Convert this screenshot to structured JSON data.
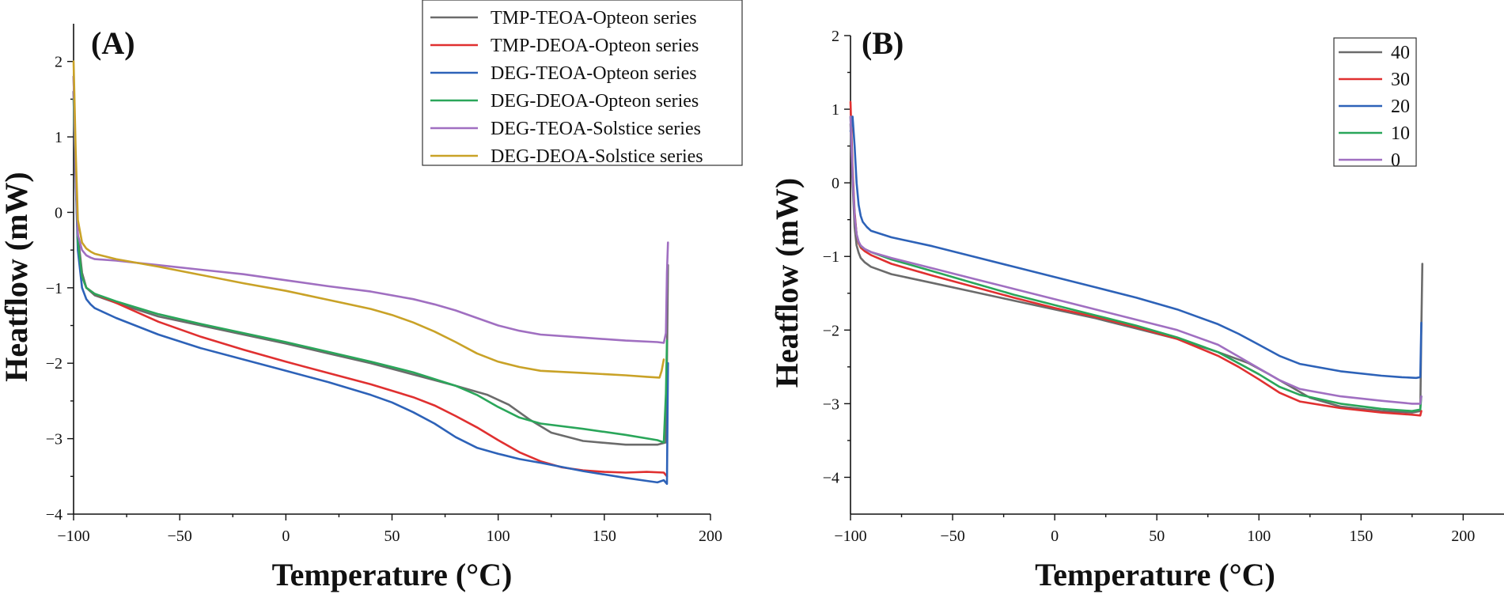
{
  "chart_data": [
    {
      "type": "line",
      "panel_label": "(A)",
      "xlabel": "Temperature (°C)",
      "ylabel": "Heatflow (mW)",
      "xlim": [
        -100,
        200
      ],
      "ylim": [
        -4,
        2.5
      ],
      "xticks": [
        -100,
        -50,
        0,
        50,
        100,
        150,
        200
      ],
      "xtick_labels": [
        "−100",
        "−50",
        "0",
        "50",
        "100",
        "150",
        "200"
      ],
      "yticks": [
        -4,
        -3,
        -2,
        -1,
        0,
        1,
        2
      ],
      "ytick_labels": [
        "−4",
        "−3",
        "−2",
        "−1",
        "0",
        "1",
        "2"
      ],
      "legend_position": "top-center",
      "series": [
        {
          "name": "TMP-TEOA-Opteon series",
          "color": "#6b6b6b",
          "x": [
            -100,
            -99,
            -98,
            -96,
            -94,
            -90,
            -80,
            -60,
            -40,
            -20,
            0,
            20,
            40,
            60,
            80,
            95,
            105,
            115,
            125,
            140,
            160,
            175,
            179,
            179.5,
            180
          ],
          "y": [
            1.8,
            0.6,
            -0.3,
            -0.8,
            -1.0,
            -1.1,
            -1.2,
            -1.38,
            -1.5,
            -1.62,
            -1.74,
            -1.87,
            -2.0,
            -2.15,
            -2.3,
            -2.42,
            -2.55,
            -2.75,
            -2.92,
            -3.03,
            -3.08,
            -3.08,
            -3.05,
            -2.0,
            -0.7
          ]
        },
        {
          "name": "TMP-DEOA-Opteon series",
          "color": "#e03030",
          "x": [
            -100,
            -99,
            -98,
            -96,
            -94,
            -90,
            -80,
            -60,
            -40,
            -20,
            0,
            20,
            40,
            60,
            70,
            80,
            90,
            100,
            110,
            120,
            130,
            140,
            150,
            160,
            170,
            178,
            179.5
          ],
          "y": [
            1.6,
            0.5,
            -0.4,
            -0.85,
            -1.0,
            -1.08,
            -1.2,
            -1.45,
            -1.65,
            -1.82,
            -1.98,
            -2.13,
            -2.28,
            -2.45,
            -2.56,
            -2.7,
            -2.85,
            -3.02,
            -3.18,
            -3.3,
            -3.38,
            -3.42,
            -3.44,
            -3.45,
            -3.44,
            -3.45,
            -3.5
          ]
        },
        {
          "name": "DEG-TEOA-Opteon series",
          "color": "#2d62b8",
          "x": [
            -100,
            -99,
            -98,
            -96,
            -94,
            -92,
            -90,
            -80,
            -60,
            -40,
            -20,
            0,
            20,
            40,
            50,
            60,
            70,
            80,
            90,
            100,
            110,
            120,
            140,
            160,
            170,
            175,
            178,
            179.5,
            180
          ],
          "y": [
            1.6,
            0.4,
            -0.5,
            -1.0,
            -1.15,
            -1.22,
            -1.27,
            -1.4,
            -1.62,
            -1.8,
            -1.95,
            -2.1,
            -2.25,
            -2.42,
            -2.52,
            -2.65,
            -2.8,
            -2.98,
            -3.12,
            -3.2,
            -3.27,
            -3.32,
            -3.43,
            -3.52,
            -3.56,
            -3.58,
            -3.55,
            -3.6,
            -2.0
          ]
        },
        {
          "name": "DEG-DEOA-Opteon series",
          "color": "#2aa65a",
          "x": [
            -100,
            -99,
            -98,
            -96,
            -94,
            -90,
            -80,
            -60,
            -40,
            -20,
            0,
            20,
            40,
            60,
            80,
            90,
            100,
            110,
            120,
            140,
            160,
            175,
            178,
            179,
            179.5
          ],
          "y": [
            1.5,
            0.5,
            -0.4,
            -0.85,
            -1.0,
            -1.08,
            -1.18,
            -1.35,
            -1.48,
            -1.6,
            -1.72,
            -1.85,
            -1.98,
            -2.12,
            -2.3,
            -2.42,
            -2.58,
            -2.72,
            -2.8,
            -2.87,
            -2.95,
            -3.02,
            -3.05,
            -2.4,
            -1.7
          ]
        },
        {
          "name": "DEG-TEOA-Solstice series",
          "color": "#a06fc1",
          "x": [
            -100,
            -99,
            -98,
            -96,
            -94,
            -92,
            -90,
            -80,
            -60,
            -40,
            -20,
            0,
            20,
            40,
            60,
            70,
            80,
            90,
            100,
            110,
            120,
            140,
            160,
            175,
            178,
            179,
            179.5,
            180
          ],
          "y": [
            1.8,
            0.5,
            -0.3,
            -0.5,
            -0.57,
            -0.6,
            -0.62,
            -0.64,
            -0.7,
            -0.76,
            -0.82,
            -0.9,
            -0.98,
            -1.05,
            -1.15,
            -1.22,
            -1.3,
            -1.4,
            -1.5,
            -1.57,
            -1.62,
            -1.66,
            -1.7,
            -1.72,
            -1.73,
            -1.6,
            -0.8,
            -0.4
          ]
        },
        {
          "name": "DEG-DEOA-Solstice series",
          "color": "#c9a227",
          "x": [
            -100,
            -99,
            -98,
            -96,
            -94,
            -92,
            -90,
            -80,
            -60,
            -40,
            -20,
            0,
            20,
            40,
            50,
            60,
            70,
            80,
            90,
            100,
            110,
            120,
            140,
            160,
            170,
            176,
            177,
            178
          ],
          "y": [
            2.0,
            0.8,
            -0.1,
            -0.4,
            -0.48,
            -0.52,
            -0.55,
            -0.62,
            -0.72,
            -0.83,
            -0.94,
            -1.04,
            -1.16,
            -1.28,
            -1.36,
            -1.46,
            -1.58,
            -1.72,
            -1.87,
            -1.98,
            -2.05,
            -2.1,
            -2.13,
            -2.16,
            -2.18,
            -2.19,
            -2.1,
            -1.95
          ]
        }
      ]
    },
    {
      "type": "line",
      "panel_label": "(B)",
      "xlabel": "Temperature (°C)",
      "ylabel": "Heatflow (mW)",
      "xlim": [
        -100,
        220
      ],
      "ylim": [
        -4.5,
        2
      ],
      "xticks": [
        -100,
        -50,
        0,
        50,
        100,
        150,
        200
      ],
      "xtick_labels": [
        "−100",
        "−50",
        "0",
        "50",
        "100",
        "150",
        "200"
      ],
      "yticks": [
        -4,
        -3,
        -2,
        -1,
        0,
        1,
        2
      ],
      "ytick_labels": [
        "−4",
        "−3",
        "−2",
        "−1",
        "0",
        "1",
        "2"
      ],
      "legend_position": "top-right",
      "series": [
        {
          "name": "40",
          "color": "#6b6b6b",
          "x": [
            -100,
            -99,
            -98,
            -97,
            -96,
            -95,
            -93,
            -90,
            -80,
            -60,
            -40,
            -20,
            0,
            20,
            40,
            60,
            80,
            95,
            105,
            115,
            125,
            140,
            160,
            175,
            179,
            179.5,
            180
          ],
          "y": [
            0.8,
            0.0,
            -0.6,
            -0.85,
            -0.95,
            -1.02,
            -1.08,
            -1.14,
            -1.24,
            -1.36,
            -1.48,
            -1.6,
            -1.72,
            -1.84,
            -1.98,
            -2.12,
            -2.3,
            -2.45,
            -2.6,
            -2.76,
            -2.92,
            -3.04,
            -3.1,
            -3.12,
            -3.1,
            -2.0,
            -1.1
          ]
        },
        {
          "name": "30",
          "color": "#e03030",
          "x": [
            -100,
            -99,
            -98,
            -97,
            -96,
            -95,
            -93,
            -90,
            -80,
            -60,
            -40,
            -20,
            0,
            20,
            40,
            60,
            80,
            90,
            100,
            110,
            120,
            140,
            160,
            175,
            179,
            179.5
          ],
          "y": [
            1.1,
            0.2,
            -0.4,
            -0.7,
            -0.82,
            -0.88,
            -0.93,
            -0.98,
            -1.1,
            -1.26,
            -1.41,
            -1.56,
            -1.7,
            -1.82,
            -1.96,
            -2.12,
            -2.35,
            -2.5,
            -2.67,
            -2.85,
            -2.97,
            -3.06,
            -3.12,
            -3.15,
            -3.16,
            -3.1
          ]
        },
        {
          "name": "20",
          "color": "#2d62b8",
          "x": [
            -100,
            -99,
            -98,
            -97,
            -96,
            -95,
            -94,
            -92,
            -90,
            -80,
            -60,
            -40,
            -20,
            0,
            20,
            40,
            60,
            80,
            90,
            100,
            110,
            120,
            140,
            160,
            170,
            177,
            179,
            179.5
          ],
          "y": [
            0.7,
            0.9,
            0.5,
            0.0,
            -0.3,
            -0.45,
            -0.53,
            -0.6,
            -0.65,
            -0.74,
            -0.86,
            -1.0,
            -1.14,
            -1.28,
            -1.42,
            -1.56,
            -1.72,
            -1.92,
            -2.05,
            -2.2,
            -2.35,
            -2.46,
            -2.56,
            -2.62,
            -2.64,
            -2.65,
            -2.64,
            -1.9
          ]
        },
        {
          "name": "10",
          "color": "#2aa65a",
          "x": [
            -100,
            -99,
            -98,
            -97,
            -96,
            -95,
            -93,
            -90,
            -80,
            -60,
            -40,
            -20,
            0,
            20,
            40,
            60,
            80,
            90,
            100,
            110,
            120,
            140,
            160,
            175,
            179,
            179.5
          ],
          "y": [
            0.9,
            0.1,
            -0.45,
            -0.7,
            -0.8,
            -0.86,
            -0.9,
            -0.94,
            -1.04,
            -1.2,
            -1.36,
            -1.52,
            -1.66,
            -1.8,
            -1.94,
            -2.1,
            -2.3,
            -2.45,
            -2.6,
            -2.77,
            -2.88,
            -3.0,
            -3.07,
            -3.1,
            -3.08,
            -2.9
          ]
        },
        {
          "name": "0",
          "color": "#a06fc1",
          "x": [
            -100,
            -99,
            -98,
            -97,
            -96,
            -95,
            -93,
            -90,
            -80,
            -60,
            -40,
            -20,
            0,
            20,
            40,
            60,
            80,
            90,
            100,
            110,
            120,
            140,
            160,
            175,
            179,
            179.5
          ],
          "y": [
            0.9,
            0.1,
            -0.45,
            -0.7,
            -0.8,
            -0.85,
            -0.9,
            -0.94,
            -1.02,
            -1.16,
            -1.3,
            -1.44,
            -1.58,
            -1.72,
            -1.86,
            -2.0,
            -2.2,
            -2.36,
            -2.52,
            -2.68,
            -2.8,
            -2.9,
            -2.96,
            -3.0,
            -3.0,
            -2.9
          ]
        }
      ]
    }
  ]
}
